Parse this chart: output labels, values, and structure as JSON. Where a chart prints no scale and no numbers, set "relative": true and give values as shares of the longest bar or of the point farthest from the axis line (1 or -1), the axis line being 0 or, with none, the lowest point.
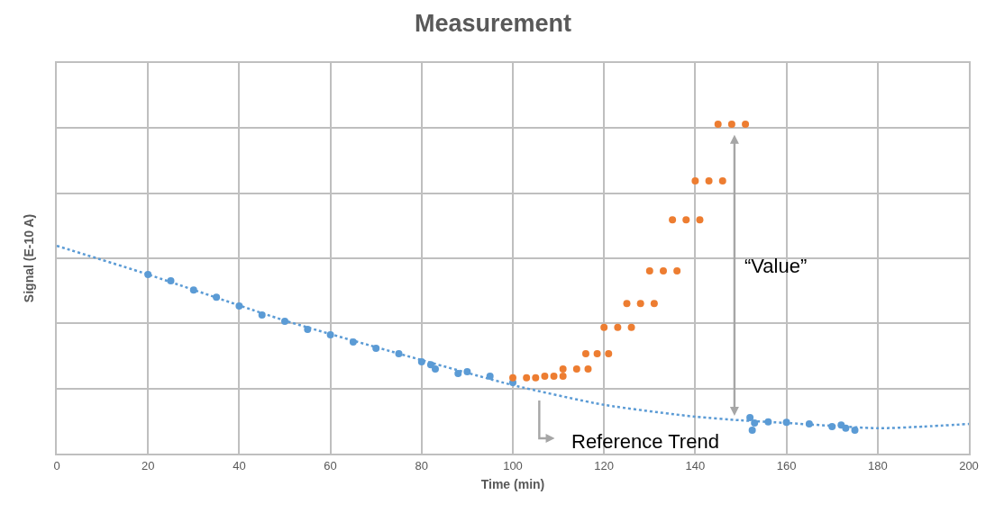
{
  "chart_data": {
    "type": "scatter",
    "title": "Measurement",
    "xlabel": "Time (min)",
    "ylabel": "Signal (E-10 A)",
    "relative": true,
    "xlim": [
      0,
      200
    ],
    "xticks": [
      0,
      20,
      40,
      60,
      80,
      100,
      120,
      140,
      160,
      180,
      200
    ],
    "grid": true,
    "series": [
      {
        "type": "line",
        "color": "#5b9bd5",
        "line_style": "dotted",
        "marker": "none",
        "x": [
          0,
          20,
          50,
          80,
          100,
          120,
          140,
          150,
          160,
          180,
          190,
          200
        ],
        "values": [
          0.631,
          0.544,
          0.404,
          0.284,
          0.208,
          0.148,
          0.112,
          0.101,
          0.093,
          0.077,
          0.082,
          0.09
        ]
      },
      {
        "color": "#5b9bd5",
        "marker": "circle",
        "x": [
          20,
          25,
          30,
          35,
          40,
          45,
          50,
          55,
          60,
          65,
          70,
          75,
          80,
          82,
          83,
          88,
          90,
          95,
          100,
          null,
          152,
          152.5,
          153,
          156,
          160,
          165,
          170,
          172,
          173,
          175
        ],
        "values": [
          0.544,
          0.525,
          0.497,
          0.475,
          0.448,
          0.421,
          0.402,
          0.377,
          0.361,
          0.339,
          0.32,
          0.303,
          0.279,
          0.27,
          0.257,
          0.243,
          0.249,
          0.235,
          0.216,
          null,
          0.109,
          0.071,
          0.093,
          0.096,
          0.095,
          0.09,
          0.082,
          0.087,
          0.077,
          0.071
        ]
      },
      {
        "color": "#ed7d31",
        "marker": "circle",
        "x": [
          100,
          103,
          105,
          107,
          109,
          111,
          111,
          114,
          116.5,
          116,
          118.5,
          121,
          120,
          123,
          126,
          125,
          128,
          131,
          130,
          133,
          136,
          135,
          138,
          141,
          140,
          143,
          146,
          145,
          148,
          151
        ],
        "values": [
          0.23,
          0.23,
          0.23,
          0.235,
          0.235,
          0.235,
          0.257,
          0.257,
          0.257,
          0.303,
          0.303,
          0.303,
          0.383,
          0.383,
          0.383,
          0.456,
          0.456,
          0.456,
          0.555,
          0.555,
          0.555,
          0.71,
          0.71,
          0.71,
          0.828,
          0.828,
          0.828,
          1,
          1,
          1
        ]
      }
    ],
    "annotations": [
      "“Value”",
      "Reference Trend"
    ]
  }
}
